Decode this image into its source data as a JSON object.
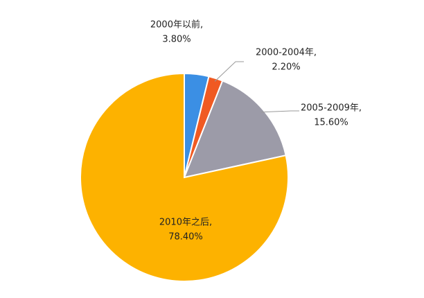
{
  "chart_data": {
    "type": "pie",
    "categories": [
      "2000年以前,",
      "2000-2004年,",
      "2005-2009年,",
      "2010年之后,"
    ],
    "values": [
      3.8,
      2.2,
      15.6,
      78.4
    ],
    "value_labels": [
      "3.80%",
      "2.20%",
      "15.60%",
      "78.40%"
    ],
    "colors": [
      "#3b8fe4",
      "#f05a22",
      "#9c9ba8",
      "#fdb200"
    ]
  }
}
